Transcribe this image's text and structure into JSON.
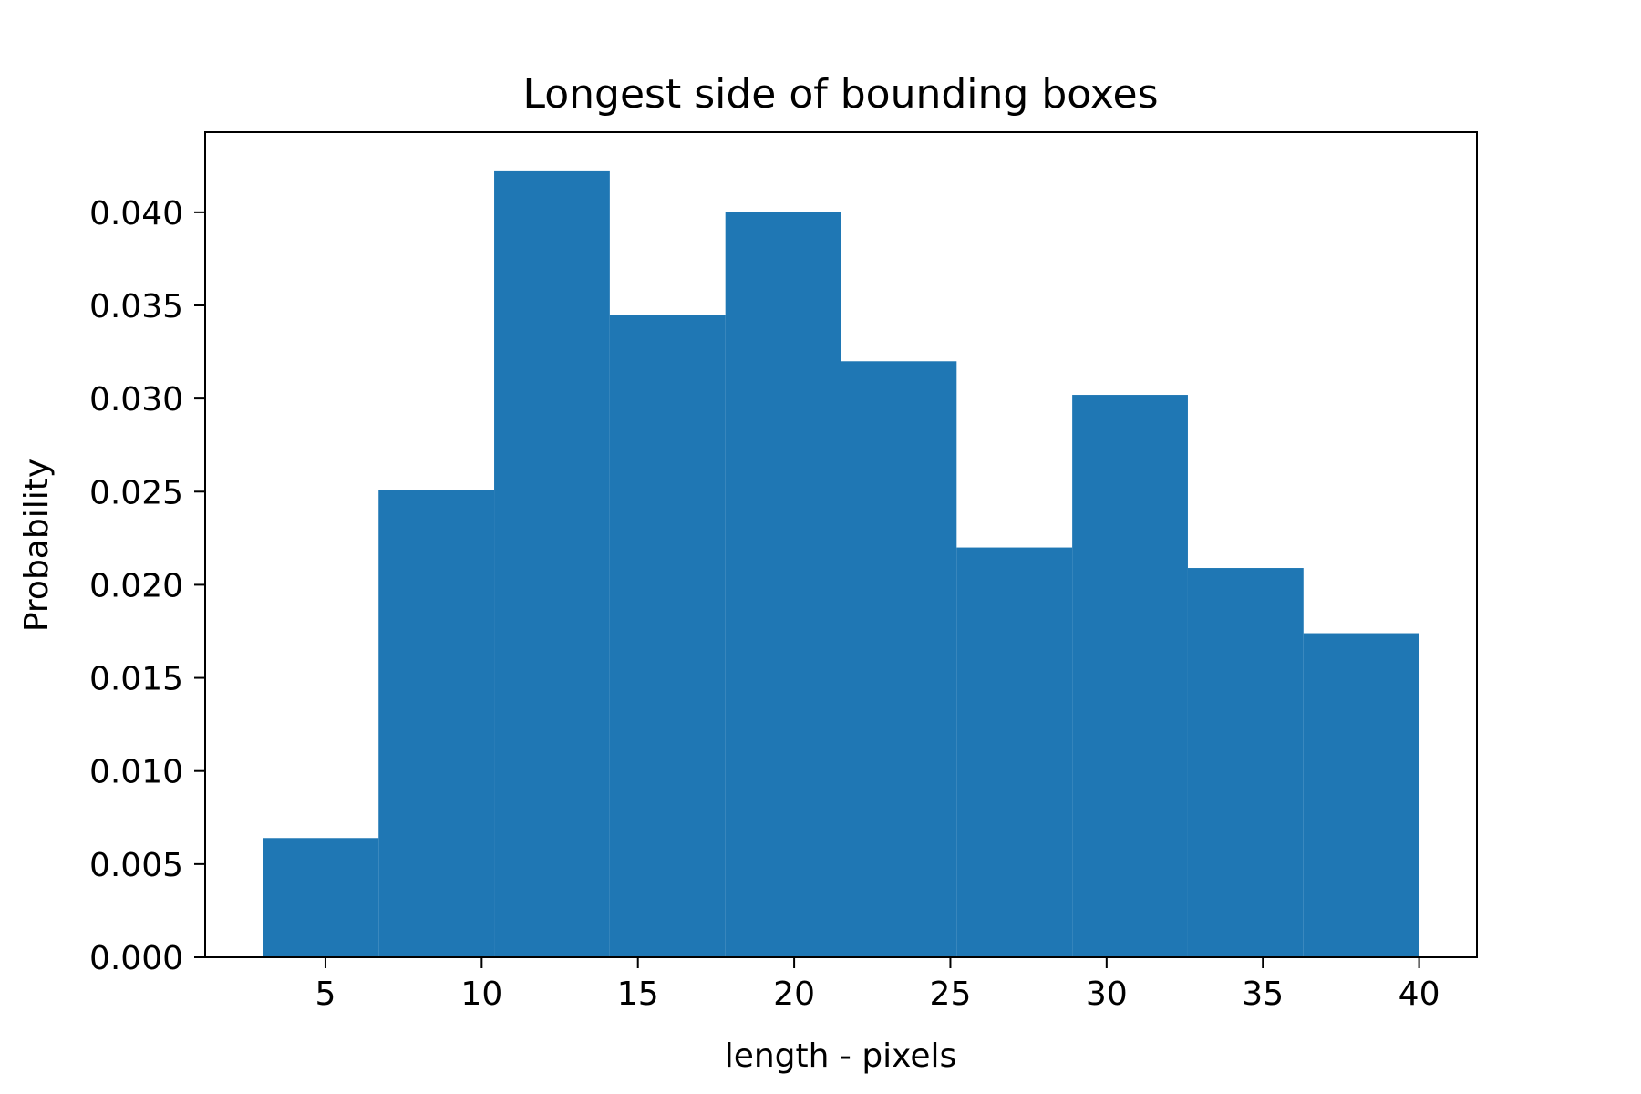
{
  "chart_data": {
    "type": "bar",
    "title": "Longest side of bounding boxes",
    "xlabel": "length - pixels",
    "ylabel": "Probability",
    "bin_edges": [
      3.0,
      6.7,
      10.4,
      14.1,
      17.8,
      21.5,
      25.2,
      28.9,
      32.6,
      36.3,
      40.0
    ],
    "values": [
      0.0064,
      0.0251,
      0.0422,
      0.0345,
      0.04,
      0.032,
      0.022,
      0.0302,
      0.0209,
      0.0174
    ],
    "xlim": [
      1.15,
      41.85
    ],
    "ylim": [
      0.0,
      0.0443
    ],
    "xticks": [
      5,
      10,
      15,
      20,
      25,
      30,
      35,
      40
    ],
    "xtick_labels": [
      "5",
      "10",
      "15",
      "20",
      "25",
      "30",
      "35",
      "40"
    ],
    "yticks": [
      0.0,
      0.005,
      0.01,
      0.015,
      0.02,
      0.025,
      0.03,
      0.035,
      0.04
    ],
    "ytick_labels": [
      "0.000",
      "0.005",
      "0.010",
      "0.015",
      "0.020",
      "0.025",
      "0.030",
      "0.035",
      "0.040"
    ],
    "bar_color": "#1f77b4",
    "grid": false,
    "legend": "none"
  }
}
